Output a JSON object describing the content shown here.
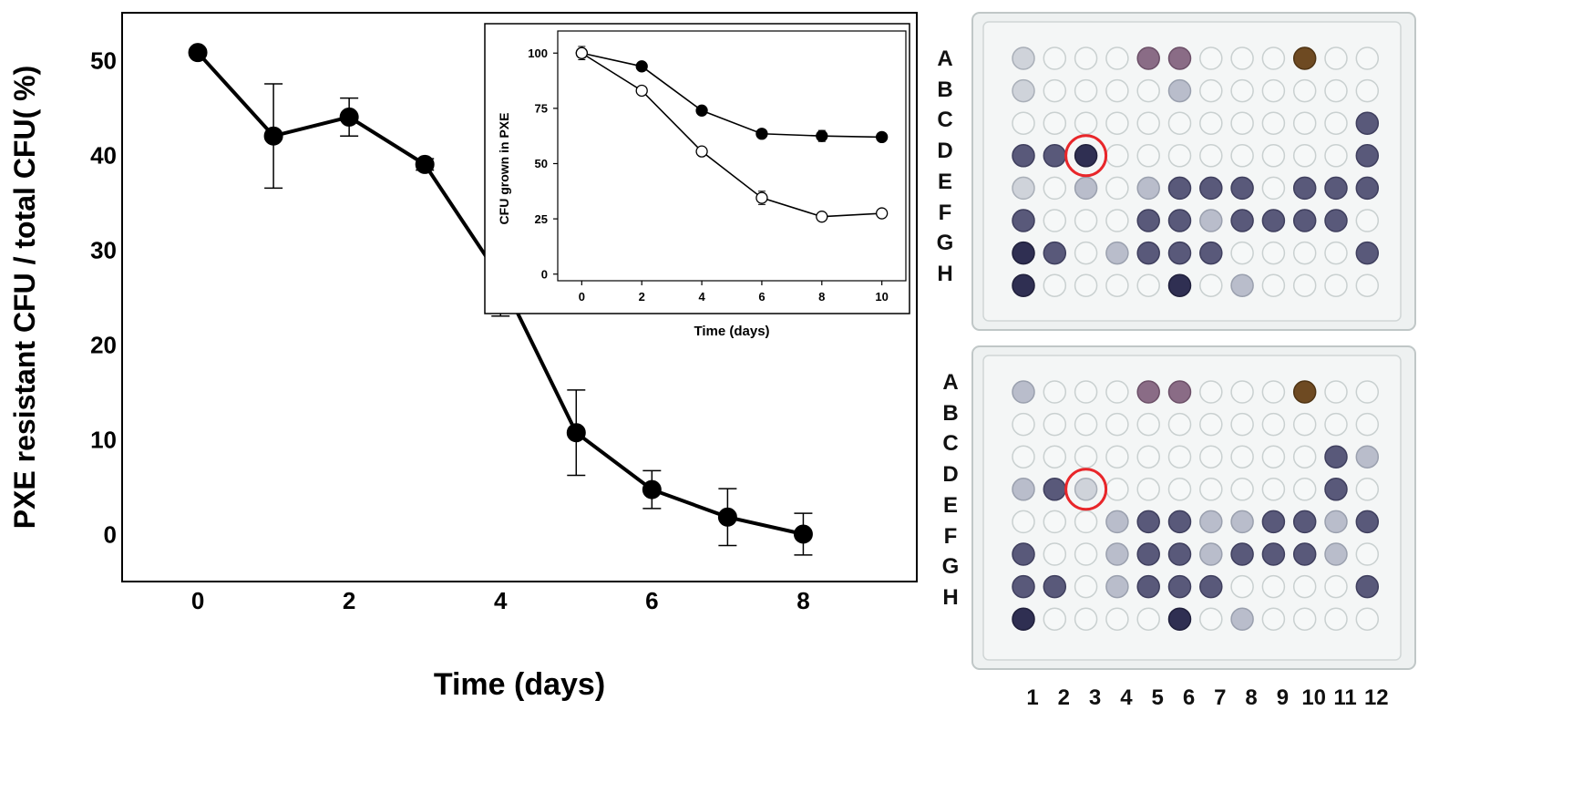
{
  "chart_data": [
    {
      "type": "line",
      "title": "",
      "xlabel": "Time (days)",
      "ylabel": "PXE resistant CFU / total CFU( %)",
      "xlim": [
        -1,
        9.5
      ],
      "ylim": [
        -5,
        55
      ],
      "xticks": [
        0,
        2,
        4,
        6,
        8
      ],
      "yticks": [
        0,
        10,
        20,
        30,
        40,
        50
      ],
      "grid": false,
      "series": [
        {
          "x": [
            0,
            1,
            2,
            3,
            4,
            5,
            6,
            7,
            8
          ],
          "y": [
            50.8,
            42.0,
            44.0,
            39.0,
            27.0,
            10.7,
            4.7,
            1.8,
            0.0
          ],
          "error": [
            0.3,
            5.5,
            2.0,
            0.6,
            4.0,
            4.5,
            2.0,
            3.0,
            2.2
          ],
          "marker": "filled",
          "color": "#000000"
        }
      ]
    },
    {
      "type": "line",
      "title": "",
      "xlabel": "Time (days)",
      "ylabel": "CFU grown in PXE",
      "xlim": [
        -0.8,
        10.8
      ],
      "ylim": [
        -3,
        110
      ],
      "xticks": [
        0,
        2,
        4,
        6,
        8,
        10
      ],
      "yticks": [
        0,
        25,
        50,
        75,
        100
      ],
      "grid": false,
      "series": [
        {
          "x": [
            0,
            2,
            4,
            6,
            8,
            10
          ],
          "y": [
            100,
            94,
            74,
            63.5,
            62.5,
            62
          ],
          "error": [
            3,
            1,
            1,
            2,
            2.5,
            1.5
          ],
          "marker": "filled",
          "color": "#000000"
        },
        {
          "x": [
            0,
            2,
            4,
            6,
            8,
            10
          ],
          "y": [
            100,
            83,
            55.5,
            34.5,
            26,
            27.5
          ],
          "error": [
            2,
            1,
            1,
            3,
            1,
            1
          ],
          "marker": "open",
          "color": "#000000"
        }
      ]
    }
  ],
  "plates": {
    "row_labels": [
      "A",
      "B",
      "C",
      "D",
      "E",
      "F",
      "G",
      "H"
    ],
    "col_labels": [
      "1",
      "2",
      "3",
      "4",
      "5",
      "6",
      "7",
      "8",
      "9",
      "10",
      "11",
      "12"
    ],
    "highlight_color": "#e8262a",
    "top": {
      "wells": [
        "c...pp...b..",
        "c....l......",
        "...........d",
        "ddD........d",
        "c.l.lddd.ddd",
        "d...ddldddd.",
        "Dd.lddd....d",
        "D....D.l...."
      ]
    },
    "bottom": {
      "wells": [
        "l...pp...b..",
        "............",
        "..........dl",
        "ldc.......d.",
        "...lddllddld",
        "d..lddldddl.",
        "dd.lddd....d",
        "D....D.l...."
      ]
    }
  }
}
